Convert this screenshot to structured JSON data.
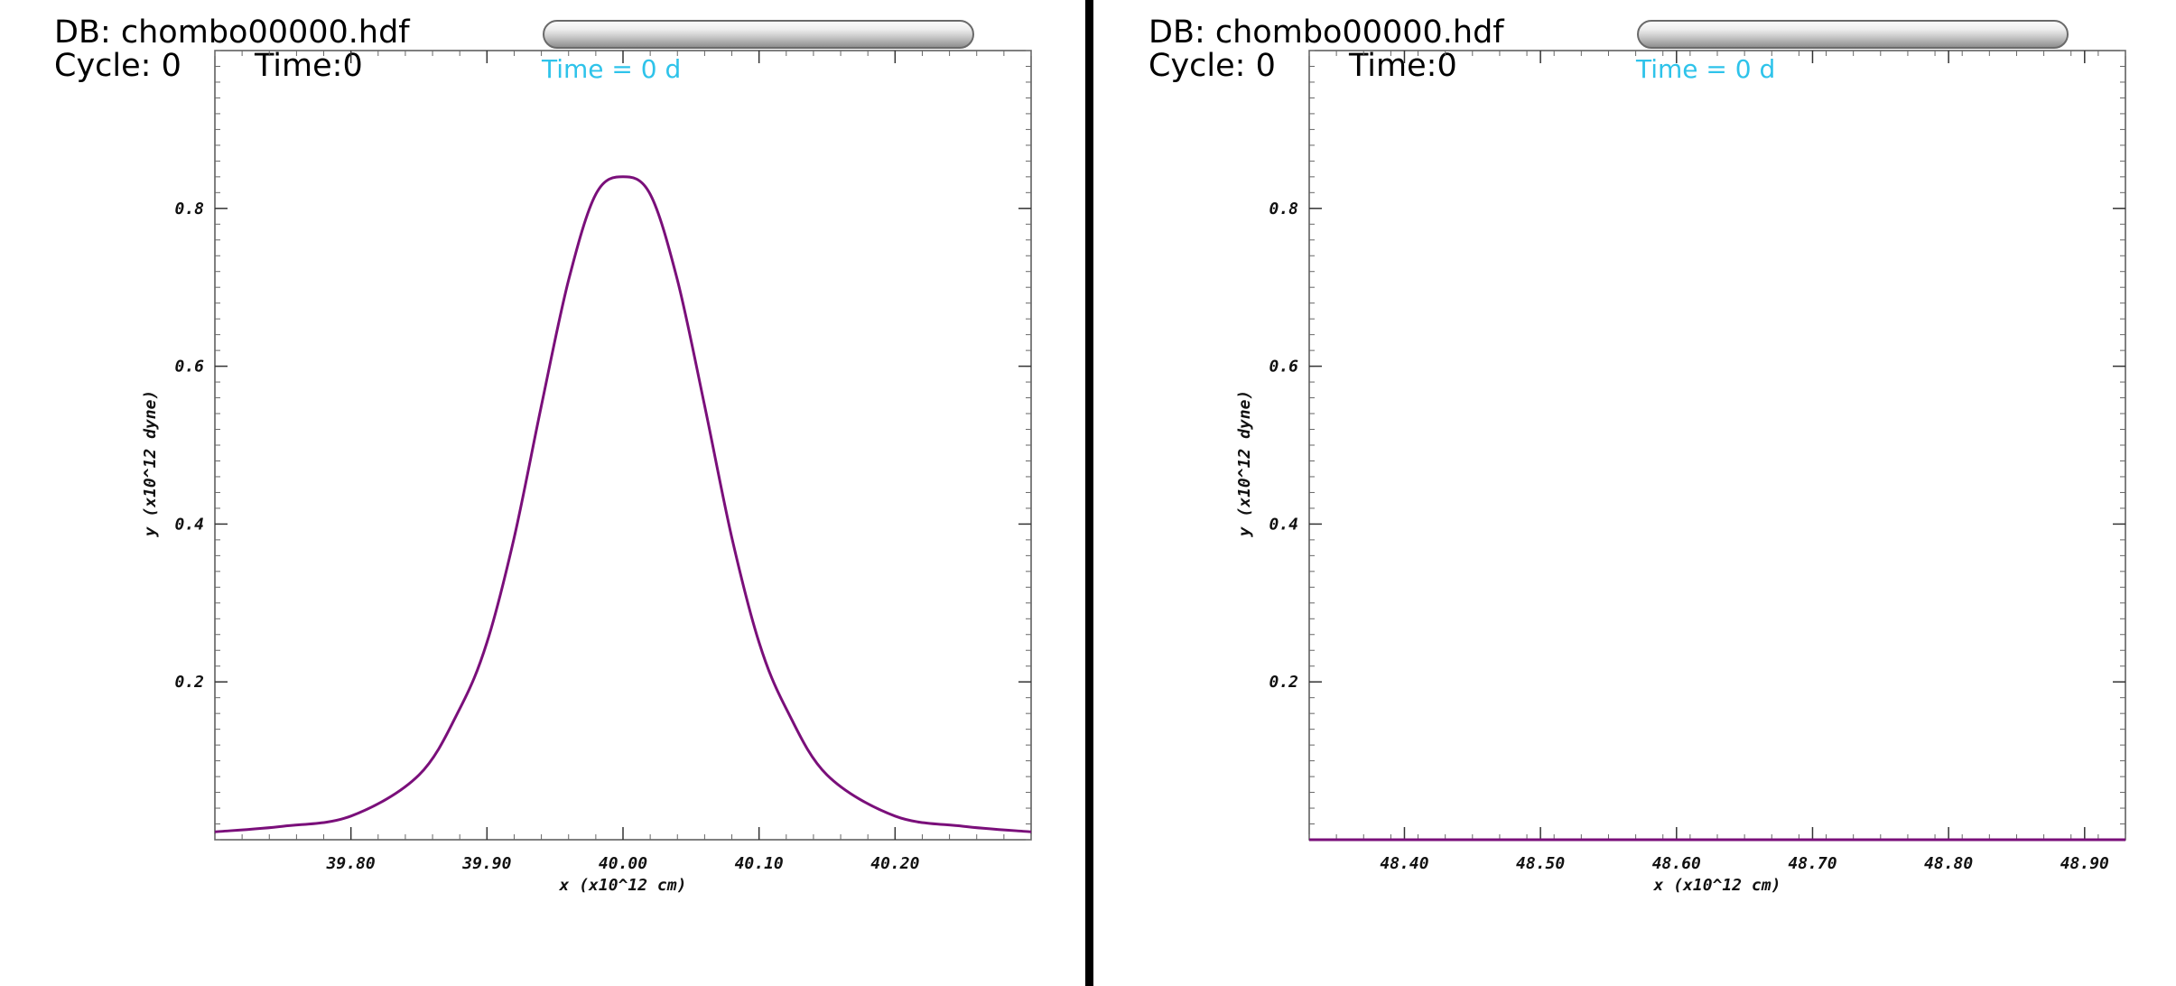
{
  "header": {
    "db_label": "DB: chombo00000.hdf",
    "cycle_label": "Cycle: 0",
    "time_label": "Time:0",
    "time_note": "Time = 0 d"
  },
  "colors": {
    "curve": "#7a0f7a",
    "time_note": "#2ec3ea",
    "divider": "#000000"
  },
  "chart_data": [
    {
      "type": "line",
      "xlabel": "x (x10^12 cm)",
      "ylabel": "y (x10^12 dyne)",
      "xlim": [
        39.7,
        40.3
      ],
      "ylim": [
        0,
        1.0
      ],
      "xticks": [
        39.8,
        39.9,
        40.0,
        40.1,
        40.2
      ],
      "xtick_labels": [
        "39.80",
        "39.90",
        "40.00",
        "40.10",
        "40.20"
      ],
      "yticks": [
        0.2,
        0.4,
        0.6,
        0.8
      ],
      "ytick_labels": [
        "0.2",
        "0.4",
        "0.6",
        "0.8"
      ],
      "series": [
        {
          "x": [
            39.7,
            39.75,
            39.8,
            39.85,
            39.88,
            39.9,
            39.92,
            39.94,
            39.96,
            39.98,
            40.0,
            40.02,
            40.04,
            40.06,
            40.08,
            40.1,
            40.12,
            40.15,
            40.2,
            40.25,
            40.3
          ],
          "values": [
            0.01,
            0.017,
            0.03,
            0.082,
            0.166,
            0.25,
            0.383,
            0.55,
            0.709,
            0.818,
            0.84,
            0.818,
            0.709,
            0.55,
            0.383,
            0.25,
            0.166,
            0.082,
            0.03,
            0.017,
            0.01
          ]
        }
      ]
    },
    {
      "type": "line",
      "xlabel": "x (x10^12 cm)",
      "ylabel": "y (x10^12 dyne)",
      "xlim": [
        48.33,
        48.93
      ],
      "ylim": [
        0,
        1.0
      ],
      "xticks": [
        48.4,
        48.5,
        48.6,
        48.7,
        48.8,
        48.9
      ],
      "xtick_labels": [
        "48.40",
        "48.50",
        "48.60",
        "48.70",
        "48.80",
        "48.90"
      ],
      "yticks": [
        0.2,
        0.4,
        0.6,
        0.8
      ],
      "ytick_labels": [
        "0.2",
        "0.4",
        "0.6",
        "0.8"
      ],
      "series": [
        {
          "x": [
            48.33,
            48.93
          ],
          "values": [
            0.0,
            0.0
          ]
        }
      ]
    }
  ]
}
